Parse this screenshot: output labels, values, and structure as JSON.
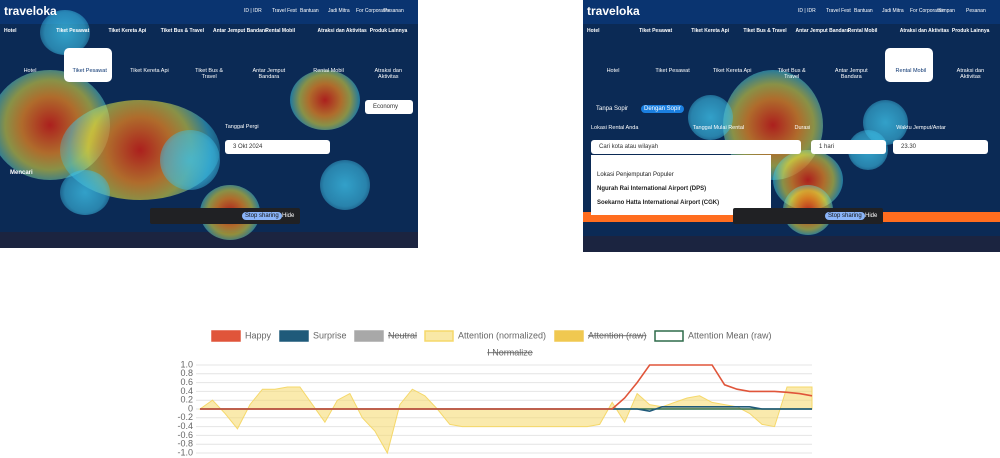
{
  "screenshots": [
    {
      "logo": "traveloka",
      "nav": [
        "ID | IDR",
        "Travel Fest",
        "Bantuan",
        "Jadi Mitra",
        "For Corporates",
        "Pesanan"
      ],
      "menu": [
        "Hotel",
        "Tiket Pesawat",
        "Tiket Kereta Api",
        "Tiket Bus & Travel",
        "Antar Jemput Bandara",
        "Rental Mobil",
        "Atraksi dan Aktivitas",
        "Produk Lainnya"
      ],
      "tabs": [
        "Hotel",
        "Tiket Pesawat",
        "Tiket Kereta Api",
        "Tiket Bus & Travel",
        "Antar Jemput Bandara",
        "Rental Mobil",
        "Atraksi dan Aktivitas"
      ],
      "labels": [
        "Tanggal Pergi"
      ],
      "fields": [
        "3 Okt 2024",
        "Economy"
      ],
      "search": "Mencari",
      "share": [
        "Stop sharing",
        "Hide"
      ]
    },
    {
      "logo": "traveloka",
      "nav": [
        "ID | IDR",
        "Travel Fest",
        "Bantuan",
        "Jadi Mitra",
        "For Corporates",
        "Simpan",
        "Pesanan"
      ],
      "menu": [
        "Hotel",
        "Tiket Pesawat",
        "Tiket Kereta Api",
        "Tiket Bus & Travel",
        "Antar Jemput Bandara",
        "Rental Mobil",
        "Atraksi dan Aktivitas",
        "Produk Lainnya"
      ],
      "tabs": [
        "Hotel",
        "Tiket Pesawat",
        "Tiket Kereta Api",
        "Tiket Bus & Travel",
        "Antar Jemput Bandara",
        "Rental Mobil",
        "Atraksi dan Aktivitas"
      ],
      "labels": [
        "Lokasi Rental Anda",
        "Tanggal Mulai Rental",
        "Durasi",
        "Waktu Jemput/Antar"
      ],
      "fields": [
        "Cari kota atau wilayah",
        "1 hari",
        "23.30"
      ],
      "options": [
        "Tanpa Sopir",
        "Dengan Sopir"
      ],
      "dropdown": [
        "Lokasi Penjemputan Populer",
        "Ngurah Rai International Airport (DPS)",
        "Soekarno Hatta International Airport (CGK)"
      ],
      "share": [
        "Stop sharing",
        "Hide"
      ]
    }
  ],
  "chart_data": {
    "type": "line",
    "title": "I Normalize",
    "title_struck": true,
    "ylim": [
      -1,
      1
    ],
    "yticks": [
      {
        "value": 1,
        "label": "1.0"
      },
      0.8,
      0.6,
      0.4,
      0.2,
      0,
      -0.2,
      -0.4,
      -0.6,
      -0.8,
      {
        "value": -1,
        "label": "-1.0"
      }
    ],
    "grid": true,
    "series": [
      {
        "name": "Happy",
        "color": "#e0553a",
        "values": [
          0,
          0,
          0,
          0,
          0,
          0,
          0,
          0,
          0,
          0,
          0,
          0,
          0,
          0,
          0,
          0,
          0,
          0,
          0,
          0,
          0,
          0,
          0,
          0,
          0,
          0,
          0,
          0,
          0,
          0,
          0,
          0,
          0,
          0,
          0.25,
          0.6,
          1,
          1,
          1,
          1,
          1,
          1,
          0.55,
          0.45,
          0.4,
          0.4,
          0.4,
          0.38,
          0.35,
          0.3
        ]
      },
      {
        "name": "Surprise",
        "color": "#1f5a7a",
        "values": [
          0,
          0,
          0,
          0,
          0,
          0,
          0,
          0,
          0,
          0,
          0,
          0,
          0,
          0,
          0,
          0,
          0,
          0,
          0,
          0,
          0,
          0,
          0,
          0,
          0,
          0,
          0,
          0,
          0,
          0,
          0,
          0,
          0,
          0,
          0,
          0,
          -0.05,
          0.05,
          0.05,
          0.05,
          0.05,
          0.05,
          0.05,
          0.05,
          0.05,
          0,
          0,
          0,
          0,
          0
        ]
      },
      {
        "name": "Neutral",
        "color": "#a8a8a8",
        "hidden": true
      },
      {
        "name": "Attention (normalized)",
        "color": "#f5d86a",
        "fill": true,
        "values": [
          0,
          0.2,
          -0.1,
          -0.45,
          0.1,
          0.45,
          0.45,
          0.5,
          0.5,
          0.1,
          -0.3,
          0.2,
          0.35,
          -0.2,
          -0.5,
          -1,
          0.1,
          0.45,
          0.3,
          0,
          -0.35,
          -0.4,
          -0.4,
          -0.4,
          -0.4,
          -0.4,
          -0.4,
          -0.4,
          -0.4,
          -0.4,
          -0.4,
          -0.4,
          -0.35,
          0.15,
          -0.3,
          0.35,
          0.1,
          0.05,
          0.15,
          0.25,
          0.3,
          0.15,
          0.1,
          0.05,
          -0.1,
          -0.35,
          -0.4,
          0.5,
          0.5,
          0.5
        ]
      },
      {
        "name": "Attention (raw)",
        "color": "#f0c850",
        "hidden": true
      },
      {
        "name": "Attention Mean (raw)",
        "color": "#2e6b4a",
        "values": [
          0,
          0,
          0,
          0,
          0,
          0,
          0,
          0,
          0,
          0,
          0,
          0,
          0,
          0,
          0,
          0,
          0,
          0,
          0,
          0,
          0,
          0,
          0,
          0,
          0,
          0,
          0,
          0,
          0,
          0,
          0,
          0,
          0,
          0,
          0,
          0,
          0,
          0,
          0,
          0,
          0,
          0,
          0,
          0,
          0,
          0,
          0,
          0,
          0,
          0
        ]
      }
    ]
  }
}
